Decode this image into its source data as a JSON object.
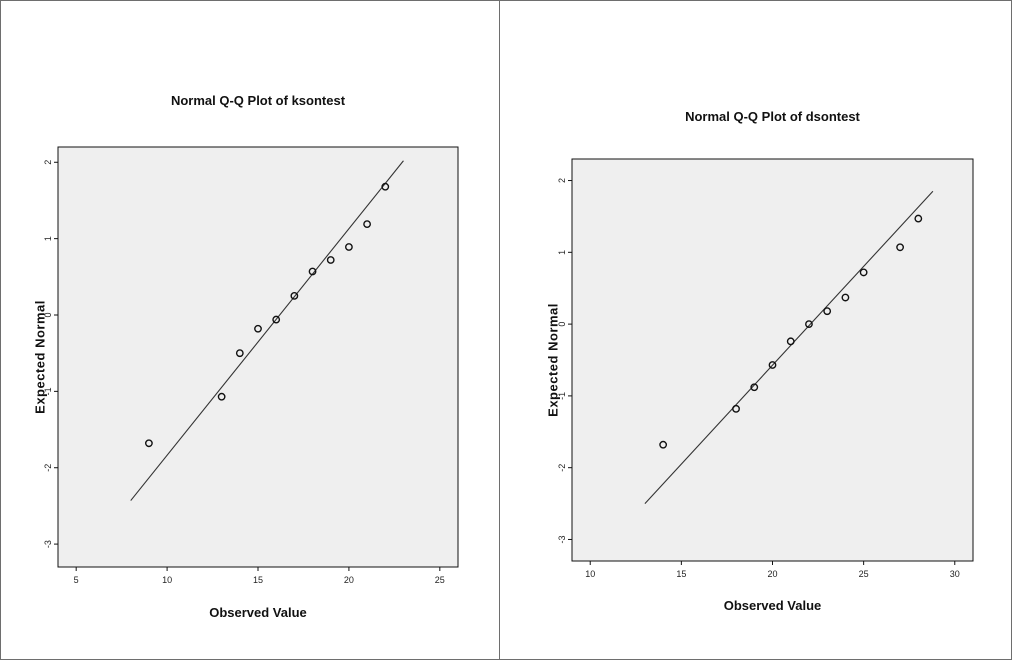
{
  "chart_data": [
    {
      "type": "scatter",
      "title": "Normal Q-Q Plot of ksontest",
      "xlabel": "Observed Value",
      "ylabel": "Expected Normal",
      "xlim": [
        4,
        26
      ],
      "ylim": [
        -3.3,
        2.2
      ],
      "xticks": [
        5,
        10,
        15,
        20,
        25
      ],
      "yticks": [
        -3,
        -2,
        -1,
        0,
        1,
        2
      ],
      "points": [
        {
          "x": 9,
          "y": -1.68
        },
        {
          "x": 13,
          "y": -1.07
        },
        {
          "x": 14,
          "y": -0.5
        },
        {
          "x": 15,
          "y": -0.18
        },
        {
          "x": 16,
          "y": -0.06
        },
        {
          "x": 17,
          "y": 0.25
        },
        {
          "x": 18,
          "y": 0.57
        },
        {
          "x": 19,
          "y": 0.72
        },
        {
          "x": 20,
          "y": 0.89
        },
        {
          "x": 21,
          "y": 1.19
        },
        {
          "x": 22,
          "y": 1.68
        }
      ],
      "reference_line": [
        {
          "x": 8,
          "y": -2.43
        },
        {
          "x": 23,
          "y": 2.02
        }
      ]
    },
    {
      "type": "scatter",
      "title": "Normal Q-Q Plot of dsontest",
      "xlabel": "Observed Value",
      "ylabel": "Expected Normal",
      "xlim": [
        9,
        31
      ],
      "ylim": [
        -3.3,
        2.3
      ],
      "xticks": [
        10,
        15,
        20,
        25,
        30
      ],
      "yticks": [
        -3,
        -2,
        -1,
        0,
        1,
        2
      ],
      "points": [
        {
          "x": 14,
          "y": -1.68
        },
        {
          "x": 18,
          "y": -1.18
        },
        {
          "x": 19,
          "y": -0.88
        },
        {
          "x": 20,
          "y": -0.57
        },
        {
          "x": 21,
          "y": -0.24
        },
        {
          "x": 22,
          "y": 0.0
        },
        {
          "x": 23,
          "y": 0.18
        },
        {
          "x": 24,
          "y": 0.37
        },
        {
          "x": 25,
          "y": 0.72
        },
        {
          "x": 27,
          "y": 1.07
        },
        {
          "x": 28,
          "y": 1.47
        }
      ],
      "reference_line": [
        {
          "x": 13,
          "y": -2.5
        },
        {
          "x": 28.8,
          "y": 1.85
        }
      ]
    }
  ]
}
